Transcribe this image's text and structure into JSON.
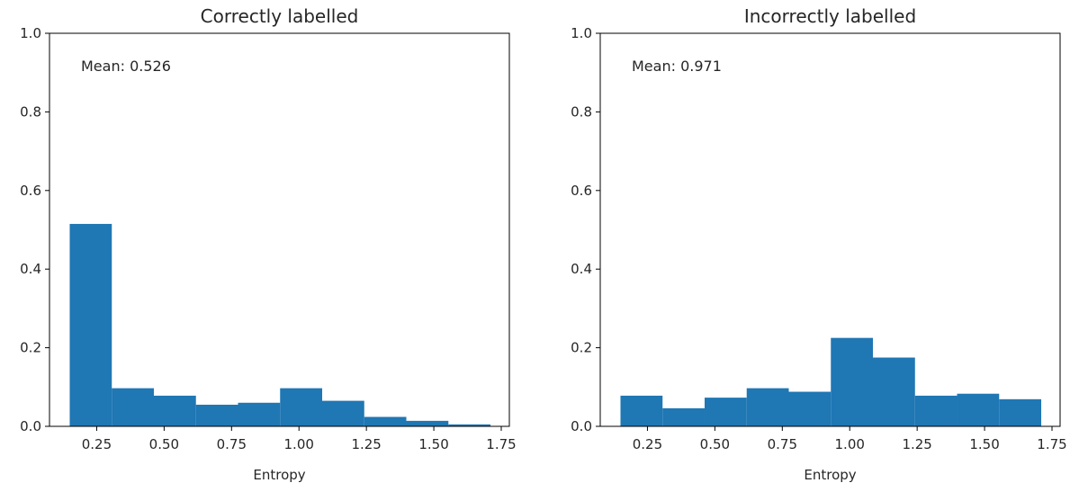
{
  "chart_data": [
    {
      "type": "bar",
      "title": "Correctly labelled",
      "xlabel": "Entropy",
      "ylabel": "",
      "annotation": "Mean: 0.526",
      "xlim": [
        0.075,
        1.78
      ],
      "ylim": [
        0,
        1.0
      ],
      "xticks": [
        "0.25",
        "0.50",
        "0.75",
        "1.00",
        "1.25",
        "1.50",
        "1.75"
      ],
      "yticks": [
        "0.0",
        "0.2",
        "0.4",
        "0.6",
        "0.8",
        "1.0"
      ],
      "bin_edges": [
        0.15,
        0.306,
        0.462,
        0.618,
        0.774,
        0.93,
        1.086,
        1.242,
        1.398,
        1.554,
        1.71
      ],
      "values": [
        0.515,
        0.097,
        0.078,
        0.055,
        0.06,
        0.097,
        0.065,
        0.024,
        0.014,
        0.005
      ],
      "color": "#1f77b4",
      "grid": false
    },
    {
      "type": "bar",
      "title": "Incorrectly labelled",
      "xlabel": "Entropy",
      "ylabel": "",
      "annotation": "Mean: 0.971",
      "xlim": [
        0.075,
        1.78
      ],
      "ylim": [
        0,
        1.0
      ],
      "xticks": [
        "0.25",
        "0.50",
        "0.75",
        "1.00",
        "1.25",
        "1.50",
        "1.75"
      ],
      "yticks": [
        "0.0",
        "0.2",
        "0.4",
        "0.6",
        "0.8",
        "1.0"
      ],
      "bin_edges": [
        0.15,
        0.306,
        0.462,
        0.618,
        0.774,
        0.93,
        1.086,
        1.242,
        1.398,
        1.554,
        1.71
      ],
      "values": [
        0.078,
        0.046,
        0.073,
        0.097,
        0.088,
        0.225,
        0.175,
        0.078,
        0.083,
        0.069
      ],
      "color": "#1f77b4",
      "grid": false
    }
  ]
}
